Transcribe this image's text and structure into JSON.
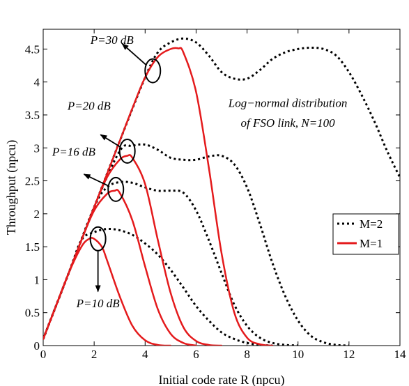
{
  "chart_data": {
    "type": "line",
    "xlabel": "Initial code rate R (npcu)",
    "ylabel": "Throughput (npcu)",
    "xlim": [
      0,
      14
    ],
    "ylim": [
      0,
      4.8
    ],
    "xticks": [
      0,
      2,
      4,
      6,
      8,
      10,
      12,
      14
    ],
    "yticks": [
      0,
      0.5,
      1,
      1.5,
      2,
      2.5,
      3,
      3.5,
      4,
      4.5
    ],
    "grid": false,
    "legend": {
      "placement": "right",
      "entries": [
        {
          "label": "M=2",
          "style": "dotted",
          "color": "#000000"
        },
        {
          "label": "M=1",
          "style": "solid",
          "color": "#e41a1c"
        }
      ]
    },
    "annotations": [
      {
        "text": "Log−normal distribution",
        "x": 9.6,
        "y": 3.62
      },
      {
        "text": "of FSO link, N=100",
        "x": 9.6,
        "y": 3.32
      },
      {
        "text": "P=30 dB",
        "x": 2.7,
        "y": 4.58,
        "circle": [
          4.3,
          4.17
        ],
        "arrow_to": [
          3.1,
          4.58
        ]
      },
      {
        "text": "P=20 dB",
        "x": 1.8,
        "y": 3.58,
        "circle": [
          3.3,
          2.95
        ],
        "arrow_to": [
          2.25,
          3.2
        ]
      },
      {
        "text": "P=16 dB",
        "x": 1.2,
        "y": 2.88,
        "circle": [
          2.85,
          2.37
        ],
        "arrow_to": [
          1.6,
          2.6
        ]
      },
      {
        "text": "P=10 dB",
        "x": 2.15,
        "y": 0.58,
        "circle": [
          2.15,
          1.62
        ],
        "arrow_to": [
          2.15,
          0.82
        ]
      }
    ],
    "series": [
      {
        "name": "M=1",
        "label": "P=30 dB",
        "x": [
          0,
          0.5,
          1,
          1.5,
          2,
          2.5,
          3,
          3.5,
          4,
          4.5,
          5,
          5.3,
          5.5,
          6,
          6.5,
          7,
          7.5,
          8,
          8.5,
          9
        ],
        "values": [
          0.1,
          0.6,
          1.1,
          1.6,
          2.1,
          2.6,
          3.1,
          3.6,
          4.07,
          4.38,
          4.5,
          4.51,
          4.45,
          3.85,
          2.7,
          1.4,
          0.5,
          0.12,
          0.02,
          0.0
        ]
      },
      {
        "name": "M=1",
        "label": "P=20 dB",
        "x": [
          0,
          0.5,
          1,
          1.5,
          2,
          2.5,
          3,
          3.3,
          3.5,
          4,
          4.5,
          5,
          5.5,
          6,
          6.5,
          7
        ],
        "values": [
          0.1,
          0.6,
          1.1,
          1.6,
          2.1,
          2.55,
          2.82,
          2.88,
          2.85,
          2.45,
          1.6,
          0.8,
          0.28,
          0.07,
          0.01,
          0.0
        ]
      },
      {
        "name": "M=1",
        "label": "P=16 dB",
        "x": [
          0,
          0.5,
          1,
          1.5,
          2,
          2.5,
          2.8,
          3,
          3.5,
          4,
          4.5,
          5,
          5.5,
          6
        ],
        "values": [
          0.1,
          0.6,
          1.1,
          1.6,
          2.05,
          2.3,
          2.35,
          2.32,
          1.9,
          1.2,
          0.55,
          0.18,
          0.04,
          0.0
        ]
      },
      {
        "name": "M=1",
        "label": "P=10 dB",
        "x": [
          0,
          0.5,
          1,
          1.5,
          1.8,
          2,
          2.3,
          2.5,
          3,
          3.5,
          4,
          4.5,
          5
        ],
        "values": [
          0.1,
          0.6,
          1.1,
          1.5,
          1.62,
          1.62,
          1.5,
          1.3,
          0.75,
          0.3,
          0.08,
          0.01,
          0.0
        ]
      },
      {
        "name": "M=2",
        "label": "P=30 dB",
        "x": [
          0,
          1,
          2,
          3,
          4,
          4.5,
          5,
          5.5,
          6,
          6.5,
          7,
          7.5,
          8,
          8.5,
          9,
          9.5,
          10,
          10.5,
          11,
          11.5,
          12,
          12.5,
          13,
          13.5,
          14
        ],
        "values": [
          0.1,
          1.1,
          2.1,
          3.1,
          4.07,
          4.45,
          4.6,
          4.66,
          4.6,
          4.4,
          4.15,
          4.05,
          4.05,
          4.18,
          4.35,
          4.45,
          4.5,
          4.52,
          4.5,
          4.4,
          4.15,
          3.8,
          3.4,
          2.95,
          2.55
        ]
      },
      {
        "name": "M=2",
        "label": "P=20 dB",
        "x": [
          0,
          1,
          2,
          3,
          3.5,
          4,
          4.5,
          5,
          5.5,
          6,
          6.5,
          7,
          7.5,
          8,
          8.5,
          9,
          9.5,
          10,
          10.5,
          11,
          11.5,
          12
        ],
        "values": [
          0.1,
          1.1,
          2.1,
          2.95,
          3.03,
          3.05,
          2.97,
          2.85,
          2.82,
          2.82,
          2.87,
          2.88,
          2.75,
          2.4,
          1.85,
          1.25,
          0.75,
          0.38,
          0.15,
          0.05,
          0.01,
          0.0
        ]
      },
      {
        "name": "M=2",
        "label": "P=16 dB",
        "x": [
          0,
          1,
          2,
          2.5,
          3,
          3.5,
          4,
          4.5,
          5,
          5.5,
          6,
          6.5,
          7,
          7.5,
          8,
          8.5,
          9,
          9.5,
          10
        ],
        "values": [
          0.1,
          1.1,
          2.1,
          2.4,
          2.48,
          2.47,
          2.4,
          2.35,
          2.35,
          2.32,
          2.05,
          1.6,
          1.1,
          0.62,
          0.3,
          0.12,
          0.04,
          0.01,
          0.0
        ]
      },
      {
        "name": "M=2",
        "label": "P=10 dB",
        "x": [
          0,
          1,
          1.5,
          2,
          2.5,
          3,
          3.5,
          4,
          4.5,
          5,
          5.5,
          6,
          6.5,
          7,
          7.5,
          8,
          8.5,
          9
        ],
        "values": [
          0.1,
          1.1,
          1.6,
          1.72,
          1.77,
          1.75,
          1.68,
          1.55,
          1.38,
          1.15,
          0.88,
          0.6,
          0.38,
          0.2,
          0.1,
          0.04,
          0.01,
          0.0
        ]
      }
    ]
  }
}
